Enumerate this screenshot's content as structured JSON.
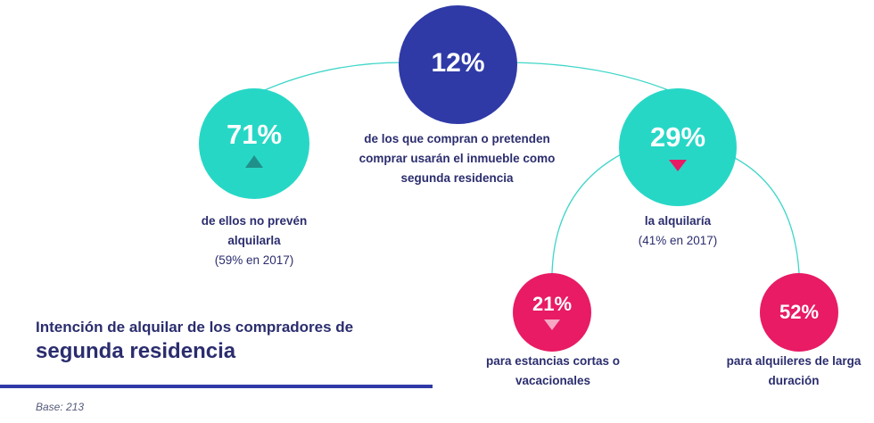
{
  "colors": {
    "navy": "#2f3aa7",
    "teal": "#27d7c6",
    "pink": "#e81b64",
    "text": "#2b2d6e",
    "connector": "#3fd6c8"
  },
  "center": {
    "value": "12%",
    "text": "de los que compran o pretenden comprar usarán el inmueble como segunda residencia"
  },
  "left": {
    "value": "71%",
    "trend": "up",
    "text": "de ellos no prevén alquilarla",
    "note": "(59% en 2017)"
  },
  "right": {
    "value": "29%",
    "trend": "down",
    "text": "la alquilaría",
    "note": "(41% en 2017)"
  },
  "bottom_left": {
    "value": "21%",
    "trend": "down",
    "text": "para estancias cortas o vacacionales"
  },
  "bottom_right": {
    "value": "52%",
    "text": "para alquileres de larga duración"
  },
  "title": {
    "line1": "Intención de alquilar de los compradores de",
    "line2": "segunda residencia"
  },
  "base": "Base: 213"
}
